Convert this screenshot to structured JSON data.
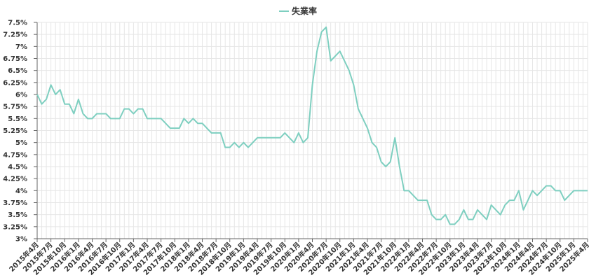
{
  "chart_data": {
    "type": "line",
    "legend": {
      "label": "失業率",
      "position": "top-center"
    },
    "grid": true,
    "ylim": [
      3,
      7.5
    ],
    "y_ticks": [
      "7.5%",
      "7.25%",
      "7%",
      "6.75%",
      "6.5%",
      "6.25%",
      "6%",
      "5.75%",
      "5.5%",
      "5.25%",
      "5%",
      "4.75%",
      "4.5%",
      "4.25%",
      "4%",
      "3.75%",
      "3.5%",
      "3.25%",
      "3%"
    ],
    "x_ticks": [
      "2015年4月",
      "2015年7月",
      "2015年10月",
      "2016年1月",
      "2016年4月",
      "2016年7月",
      "2016年10月",
      "2017年1月",
      "2017年4月",
      "2017年7月",
      "2017年10月",
      "2018年1月",
      "2018年4月",
      "2018年7月",
      "2018年10月",
      "2019年1月",
      "2019年4月",
      "2019年7月",
      "2019年10月",
      "2020年1月",
      "2020年4月",
      "2020年7月",
      "2020年10月",
      "2021年1月",
      "2021年4月",
      "2021年7月",
      "2021年10月",
      "2022年1月",
      "2022年4月",
      "2022年7月",
      "2022年10月",
      "2023年1月",
      "2023年4月",
      "2023年7月",
      "2023年10月",
      "2024年1月",
      "2024年4月",
      "2024年7月",
      "2024年10月",
      "2025年1月",
      "2025年4月"
    ],
    "color": "#7ecfc0",
    "start_month": "2015-04",
    "series": [
      {
        "name": "失業率",
        "values": [
          6.0,
          5.8,
          5.9,
          6.2,
          6.0,
          6.1,
          5.8,
          5.8,
          5.6,
          5.9,
          5.6,
          5.5,
          5.5,
          5.6,
          5.6,
          5.6,
          5.5,
          5.5,
          5.5,
          5.7,
          5.7,
          5.6,
          5.7,
          5.7,
          5.5,
          5.5,
          5.5,
          5.5,
          5.4,
          5.3,
          5.3,
          5.3,
          5.5,
          5.4,
          5.5,
          5.4,
          5.4,
          5.3,
          5.2,
          5.2,
          5.2,
          4.9,
          4.9,
          5.0,
          4.9,
          5.0,
          4.9,
          5.0,
          5.1,
          5.1,
          5.1,
          5.1,
          5.1,
          5.1,
          5.2,
          5.1,
          5.0,
          5.2,
          5.0,
          5.1,
          6.2,
          6.9,
          7.3,
          7.4,
          6.7,
          6.8,
          6.9,
          6.7,
          6.5,
          6.2,
          5.7,
          5.5,
          5.3,
          5.0,
          4.9,
          4.6,
          4.5,
          4.6,
          5.1,
          4.5,
          4.0,
          4.0,
          3.9,
          3.8,
          3.8,
          3.8,
          3.5,
          3.4,
          3.4,
          3.5,
          3.3,
          3.3,
          3.4,
          3.6,
          3.4,
          3.4,
          3.6,
          3.5,
          3.4,
          3.7,
          3.6,
          3.5,
          3.7,
          3.8,
          3.8,
          4.0,
          3.6,
          3.8,
          4.0,
          3.9,
          4.0,
          4.1,
          4.1,
          4.0,
          4.0,
          3.8,
          3.9,
          4.0,
          4.0,
          4.0,
          4.0
        ]
      }
    ]
  }
}
